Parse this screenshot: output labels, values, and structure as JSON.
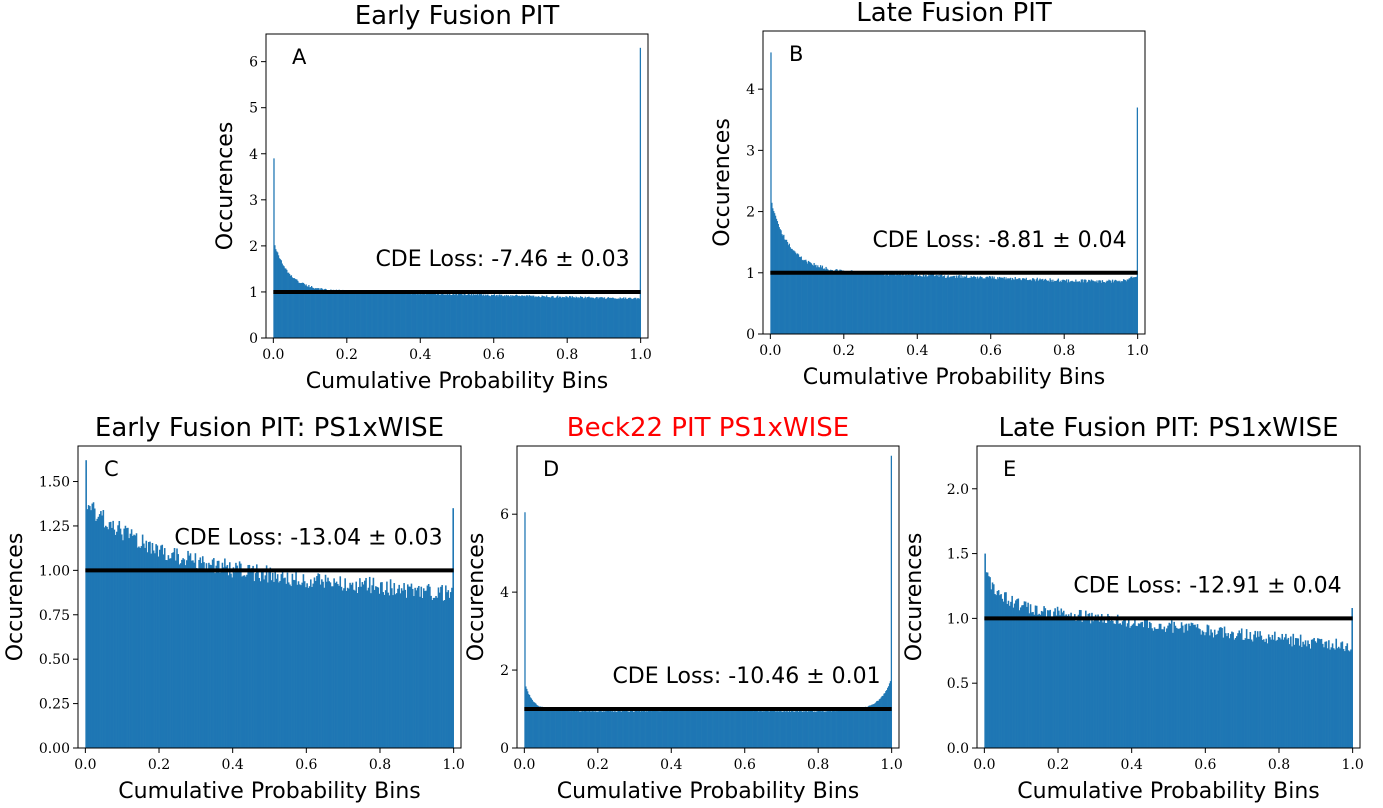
{
  "figure": {
    "title_color_default": "#000000",
    "highlight_color": "#ff0000",
    "bar_color": "#1f77b4",
    "ref_line_color": "#000000"
  },
  "chart_data": [
    {
      "id": "A",
      "type": "bar",
      "title": "Early Fusion PIT",
      "title_color": "#000000",
      "panel_label": "A",
      "xlabel": "Cumulative Probability Bins",
      "ylabel": "Occurences",
      "annotation": "CDE Loss: -7.46 ± 0.03",
      "xlim": [
        -0.02,
        1.02
      ],
      "ylim": [
        0,
        6.6
      ],
      "xticks": [
        "0.0",
        "0.2",
        "0.4",
        "0.6",
        "0.8",
        "1.0"
      ],
      "yticks": [
        "0",
        "1",
        "2",
        "3",
        "4",
        "5",
        "6"
      ],
      "reference_line": 1.0,
      "bins": 400,
      "shape": {
        "left_spike": 3.9,
        "right_spike": 6.3,
        "edge_peak": 2.1,
        "decay": 0.04,
        "floor": 1.05,
        "slope": -0.2,
        "right_rise": 0.0,
        "noise": 0.025
      }
    },
    {
      "id": "B",
      "type": "bar",
      "title": "Late Fusion PIT",
      "title_color": "#000000",
      "panel_label": "B",
      "xlabel": "Cumulative Probability Bins",
      "ylabel": "Occurences",
      "annotation": "CDE Loss: -8.81 ± 0.04",
      "xlim": [
        -0.02,
        1.02
      ],
      "ylim": [
        0,
        4.95
      ],
      "xticks": [
        "0.0",
        "0.2",
        "0.4",
        "0.6",
        "0.8",
        "1.0"
      ],
      "yticks": [
        "0",
        "1",
        "2",
        "3",
        "4"
      ],
      "reference_line": 1.0,
      "bins": 400,
      "shape": {
        "left_spike": 4.6,
        "right_spike": 3.7,
        "edge_peak": 2.2,
        "decay": 0.05,
        "floor": 1.05,
        "slope": -0.22,
        "right_rise": 0.15,
        "noise": 0.03
      }
    },
    {
      "id": "C",
      "type": "bar",
      "title": "Early Fusion PIT: PS1xWISE",
      "title_color": "#000000",
      "panel_label": "C",
      "xlabel": "Cumulative Probability Bins",
      "ylabel": "Occurences",
      "annotation": "CDE Loss: -13.04 ± 0.03",
      "xlim": [
        -0.02,
        1.02
      ],
      "ylim": [
        0,
        1.7
      ],
      "xticks": [
        "0.0",
        "0.2",
        "0.4",
        "0.6",
        "0.8",
        "1.0"
      ],
      "yticks": [
        "0.00",
        "0.25",
        "0.50",
        "0.75",
        "1.00",
        "1.25",
        "1.50"
      ],
      "reference_line": 1.0,
      "bins": 300,
      "shape": {
        "left_spike": 1.62,
        "right_spike": 1.35,
        "edge_peak": 1.38,
        "decay": 0.18,
        "floor": 1.04,
        "slope": -0.17,
        "right_rise": 0.0,
        "noise": 0.05
      }
    },
    {
      "id": "D",
      "type": "bar",
      "title": "Beck22 PIT PS1xWISE",
      "title_color": "#ff0000",
      "panel_label": "D",
      "xlabel": "Cumulative Probability Bins",
      "ylabel": "Occurences",
      "annotation": "CDE Loss: -10.46 ± 0.01",
      "xlim": [
        -0.02,
        1.02
      ],
      "ylim": [
        0,
        7.75
      ],
      "xticks": [
        "0.0",
        "0.2",
        "0.4",
        "0.6",
        "0.8",
        "1.0"
      ],
      "yticks": [
        "0",
        "2",
        "4",
        "6"
      ],
      "reference_line": 1.0,
      "bins": 400,
      "shape": {
        "left_spike": 6.05,
        "right_spike": 7.5,
        "edge_peak": 1.7,
        "decay": 0.02,
        "floor": 1.0,
        "slope": 0.0,
        "right_rise": 0.8,
        "noise": 0.015,
        "dip": 0.12
      }
    },
    {
      "id": "E",
      "type": "bar",
      "title": "Late Fusion PIT: PS1xWISE",
      "title_color": "#000000",
      "panel_label": "E",
      "xlabel": "Cumulative Probability Bins",
      "ylabel": "Occurences",
      "annotation": "CDE Loss: -12.91 ± 0.04",
      "xlim": [
        -0.02,
        1.02
      ],
      "ylim": [
        0,
        2.33
      ],
      "xticks": [
        "0.0",
        "0.2",
        "0.4",
        "0.6",
        "0.8",
        "1.0"
      ],
      "yticks": [
        "0.0",
        "0.5",
        "1.0",
        "1.5",
        "2.0"
      ],
      "reference_line": 1.0,
      "bins": 300,
      "shape": {
        "left_spike": 1.5,
        "right_spike": 1.08,
        "edge_peak": 1.35,
        "decay": 0.05,
        "floor": 1.1,
        "slope": -0.32,
        "right_rise": 0.0,
        "noise": 0.05
      }
    }
  ]
}
